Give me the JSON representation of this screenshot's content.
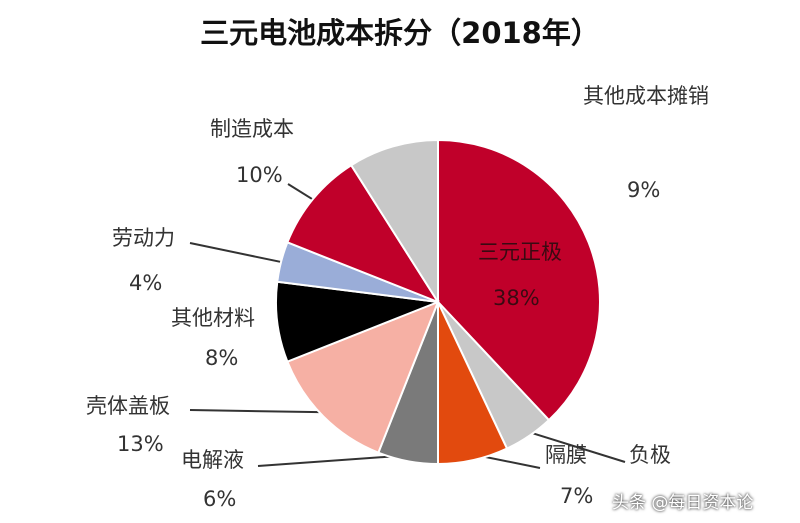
{
  "chart_data": {
    "type": "pie",
    "title": "三元电池成本拆分（2018年）",
    "slices": [
      {
        "label": "三元正极",
        "value": 38,
        "value_label": "38%",
        "color": "#c0002a"
      },
      {
        "label": "负极",
        "value": 5,
        "value_label": "",
        "color": "#c8c8c8"
      },
      {
        "label": "隔膜",
        "value": 7,
        "value_label": "7%",
        "color": "#e24a0e"
      },
      {
        "label": "电解液",
        "value": 6,
        "value_label": "6%",
        "color": "#7a7a7a"
      },
      {
        "label": "壳体盖板",
        "value": 13,
        "value_label": "13%",
        "color": "#f6b0a4"
      },
      {
        "label": "其他材料",
        "value": 8,
        "value_label": "8%",
        "color": "#000000"
      },
      {
        "label": "劳动力",
        "value": 4,
        "value_label": "4%",
        "color": "#9aadd8"
      },
      {
        "label": "制造成本",
        "value": 10,
        "value_label": "10%",
        "color": "#c0002a"
      },
      {
        "label": "其他成本摊销",
        "value": 9,
        "value_label": "9%",
        "color": "#c8c8c8"
      }
    ]
  },
  "watermark": "头条 @每日资本论"
}
